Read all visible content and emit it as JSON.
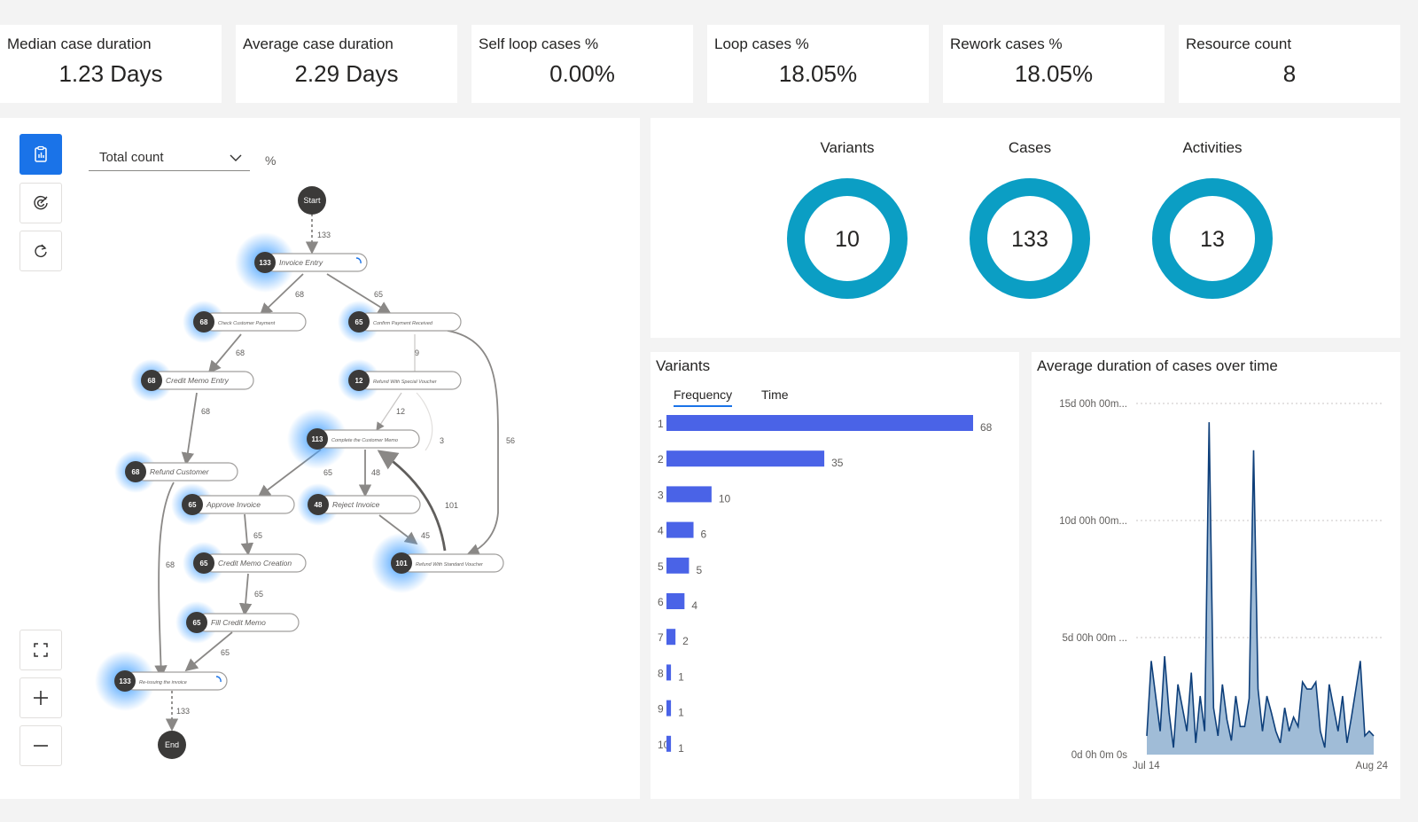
{
  "kpis": [
    {
      "title": "Median case duration",
      "value": "1.23 Days"
    },
    {
      "title": "Average case duration",
      "value": "2.29 Days"
    },
    {
      "title": "Self loop cases %",
      "value": "0.00%"
    },
    {
      "title": "Loop cases %",
      "value": "18.05%"
    },
    {
      "title": "Rework cases %",
      "value": "18.05%"
    },
    {
      "title": "Resource count",
      "value": "8"
    }
  ],
  "process_map": {
    "dropdown_value": "Total count",
    "percent_label": "%",
    "icons": [
      "clipboard-chart-icon",
      "target-icon",
      "refresh-icon",
      "fullscreen-icon",
      "zoom-in-icon",
      "zoom-out-icon"
    ],
    "nodes": [
      {
        "id": "start",
        "label": "Start",
        "count": ""
      },
      {
        "id": "invoice-entry",
        "label": "Invoice Entry",
        "count": "133"
      },
      {
        "id": "check-customer-payment",
        "label": "Check Customer Payment",
        "count": "68"
      },
      {
        "id": "confirm-payment-received",
        "label": "Confirm Payment Received",
        "count": "65"
      },
      {
        "id": "credit-memo-entry",
        "label": "Credit Memo Entry",
        "count": "68"
      },
      {
        "id": "refund-special-voucher",
        "label": "Refund With Special Voucher",
        "count": "12"
      },
      {
        "id": "complete-customer-memo",
        "label": "Complete the Customer Memo",
        "count": "113"
      },
      {
        "id": "refund-customer",
        "label": "Refund Customer",
        "count": "68"
      },
      {
        "id": "approve-invoice",
        "label": "Approve Invoice",
        "count": "65"
      },
      {
        "id": "reject-invoice",
        "label": "Reject Invoice",
        "count": "48"
      },
      {
        "id": "credit-memo-creation",
        "label": "Credit Memo Creation",
        "count": "65"
      },
      {
        "id": "refund-standard-voucher",
        "label": "Refund With Standard Voucher",
        "count": "101"
      },
      {
        "id": "fill-credit-memo",
        "label": "Fill Credit Memo",
        "count": "65"
      },
      {
        "id": "reissuing-invoice",
        "label": "Re-issuing the invoice",
        "count": "133"
      },
      {
        "id": "end",
        "label": "End",
        "count": ""
      }
    ],
    "edge_labels": [
      "133",
      "68",
      "65",
      "68",
      "9",
      "68",
      "12",
      "3",
      "56",
      "65",
      "48",
      "101",
      "65",
      "45",
      "68",
      "65",
      "65",
      "133"
    ]
  },
  "donuts": [
    {
      "title": "Variants",
      "value": "10"
    },
    {
      "title": "Cases",
      "value": "133"
    },
    {
      "title": "Activities",
      "value": "13"
    }
  ],
  "colors": {
    "accent": "#1a73e8",
    "donut": "#0b9ec4",
    "bar": "#4a63e7",
    "area_fill": "#8fb0d0",
    "area_line": "#0e3f7a",
    "node": "#3b3a39"
  },
  "variants": {
    "title": "Variants",
    "tabs": [
      "Frequency",
      "Time"
    ],
    "chart_data": {
      "type": "bar",
      "categories": [
        "1",
        "2",
        "3",
        "4",
        "5",
        "6",
        "7",
        "8",
        "9",
        "10"
      ],
      "values": [
        68,
        35,
        10,
        6,
        5,
        4,
        2,
        1,
        1,
        1
      ]
    }
  },
  "duration": {
    "title": "Average duration of cases over time",
    "chart_data": {
      "type": "area",
      "y_ticks": [
        "15d 00h 00m...",
        "10d 00h 00m...",
        "5d 00h 00m ...",
        "0d 0h 0m 0s"
      ],
      "x_ticks": [
        "Jul 14",
        "Aug 24"
      ],
      "ylim": [
        0,
        15
      ],
      "y_unit": "days",
      "values": [
        0.8,
        4,
        2.5,
        1,
        4.2,
        1.8,
        0.3,
        3,
        2,
        1,
        3.5,
        0.5,
        2.5,
        1,
        14.2,
        2,
        0.8,
        3,
        1.5,
        0.6,
        2.5,
        1.2,
        1.2,
        2.4,
        13,
        2.8,
        1,
        2.5,
        1.8,
        1,
        0.5,
        2,
        1,
        1.6,
        1.2,
        3.1,
        2.8,
        2.8,
        3.1,
        1,
        0.3,
        3,
        2,
        1,
        2.5,
        0.5,
        1.6,
        2.8,
        4,
        0.8,
        1,
        0.8
      ]
    }
  }
}
